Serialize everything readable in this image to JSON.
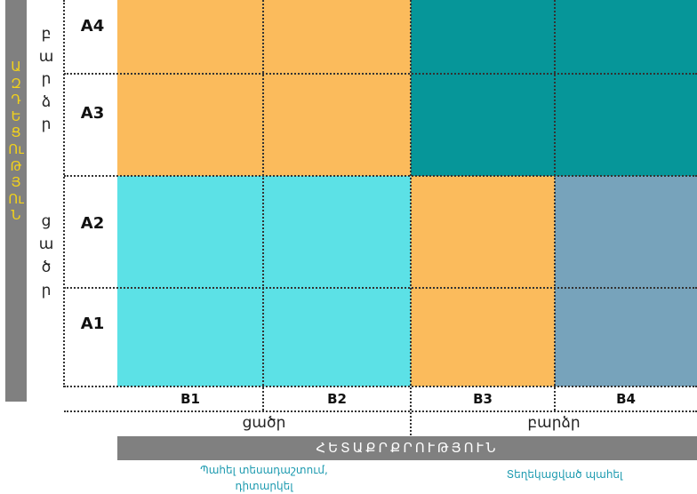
{
  "axis_y": {
    "title": "ԱԶԴԵՑՈՒԹՅՈՒՆ",
    "title_chars": [
      "Ա",
      "Զ",
      "Դ",
      "Ե",
      "Ց",
      "Ու",
      "Թ",
      "Յ",
      "Ու",
      "Ն"
    ],
    "high_label": "բարձր",
    "high_chars": [
      "բ",
      "ա",
      "ր",
      "ձ",
      "ր"
    ],
    "low_label": "ցածր",
    "low_chars": [
      "ց",
      "ա",
      "ծ",
      "ր"
    ]
  },
  "rows": [
    {
      "label": "A4"
    },
    {
      "label": "A3"
    },
    {
      "label": "A2"
    },
    {
      "label": "A1"
    }
  ],
  "columns": [
    {
      "label": "B1"
    },
    {
      "label": "B2"
    },
    {
      "label": "B3"
    },
    {
      "label": "B4"
    }
  ],
  "axis_x": {
    "title": "ՀԵՏԱՔՐՔՐՈՒԹՅՈՒՆ",
    "low_label": "ցածր",
    "high_label": "բարձր"
  },
  "notes": {
    "low_interest_line1": "Պահել տեսադաշտում,",
    "low_interest_line2": "դիտարկել",
    "high_interest": "Տեղեկացված պահել"
  },
  "colors": {
    "orange": "#fbbb5c",
    "teal": "#069699",
    "cyan": "#5ce1e6",
    "steel_blue": "#77a3bb",
    "grey_bar": "#808080",
    "yellow_text": "#f3d21a",
    "note_text": "#1e9bb0"
  }
}
